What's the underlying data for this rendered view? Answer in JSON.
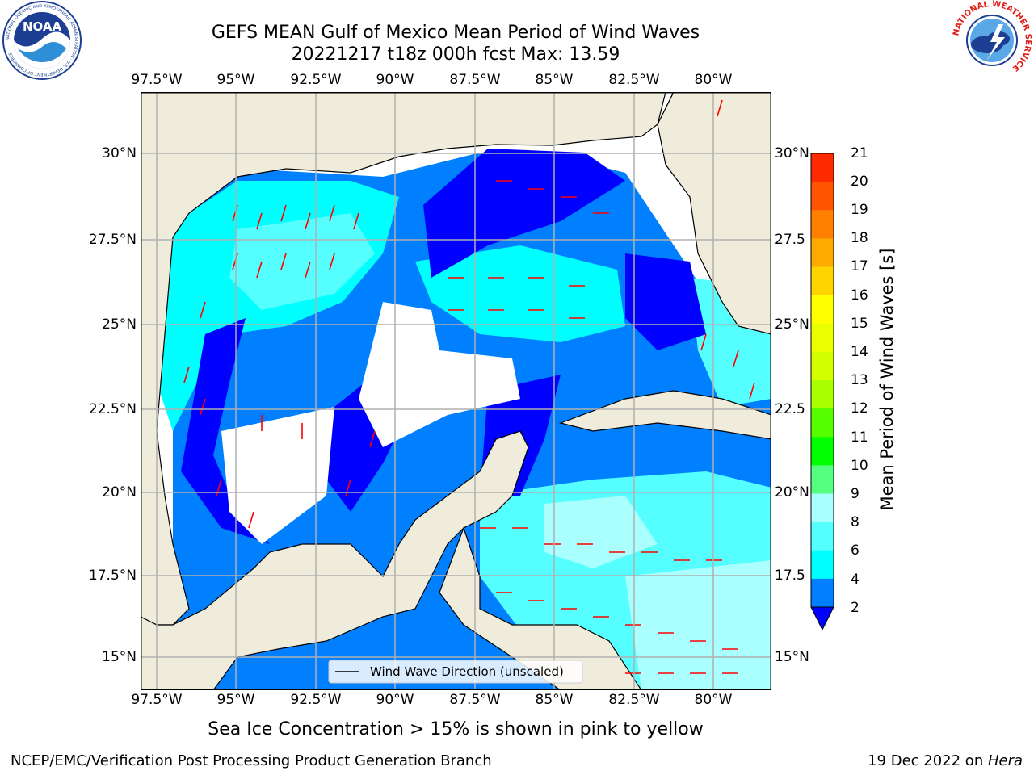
{
  "title_line1": "GEFS MEAN Gulf of Mexico Mean Period of Wind Waves",
  "title_line2": "20221217 t18z 000h fcst   Max: 13.59",
  "lon_ticks": [
    "97.5°W",
    "95°W",
    "92.5°W",
    "90°W",
    "87.5°W",
    "85°W",
    "82.5°W",
    "80°W"
  ],
  "lat_ticks": [
    "30°N",
    "27.5°N",
    "25°N",
    "22.5°N",
    "20°N",
    "17.5°N",
    "15°N"
  ],
  "lat_ticks_right": [
    "30°N",
    "27.5",
    "25°N",
    "22.5",
    "20°N",
    "17.5",
    "15°N"
  ],
  "legend_label": "Wind Wave Direction (unscaled)",
  "colorbar": {
    "title": "Mean Period of Wind Waves [s]",
    "labels": [
      "21",
      "20",
      "19",
      "18",
      "17",
      "16",
      "15",
      "14",
      "13",
      "12",
      "11",
      "10",
      "9",
      "8",
      "6",
      "4",
      "2"
    ],
    "colors": [
      "#ff0000",
      "#ff2a00",
      "#ff5500",
      "#ff8000",
      "#ffaa00",
      "#ffd400",
      "#ffff00",
      "#eaff00",
      "#d4ff00",
      "#aaff00",
      "#55ff00",
      "#00ff00",
      "#55ff80",
      "#aaffff",
      "#55ffff",
      "#00ffff",
      "#0080ff"
    ],
    "extend_color": "#0000ff"
  },
  "map_colors": {
    "land": "#efecdc",
    "bin_2_4": "#0080ff",
    "bin_4_6": "#00ffff",
    "bin_6_8": "#55ffff",
    "bin_8_9": "#aaffff",
    "below_2": "#0000ff",
    "arrow": "#ff0000",
    "grid": "#b0b0b0"
  },
  "sea_ice_note": "Sea Ice Concentration > 15% is shown in pink to yellow",
  "footer_left": "NCEP/EMC/Verification Post Processing Product Generation Branch",
  "footer_right_date": "19 Dec 2022 on ",
  "footer_right_host": "Hera",
  "logo_left": "NOAA",
  "logo_left_ring": "NATIONAL OCEANIC AND ATMOSPHERIC ADMINISTRATION · U.S. DEPARTMENT OF COMMERCE",
  "logo_right_ring": "NATIONAL WEATHER SERVICE"
}
